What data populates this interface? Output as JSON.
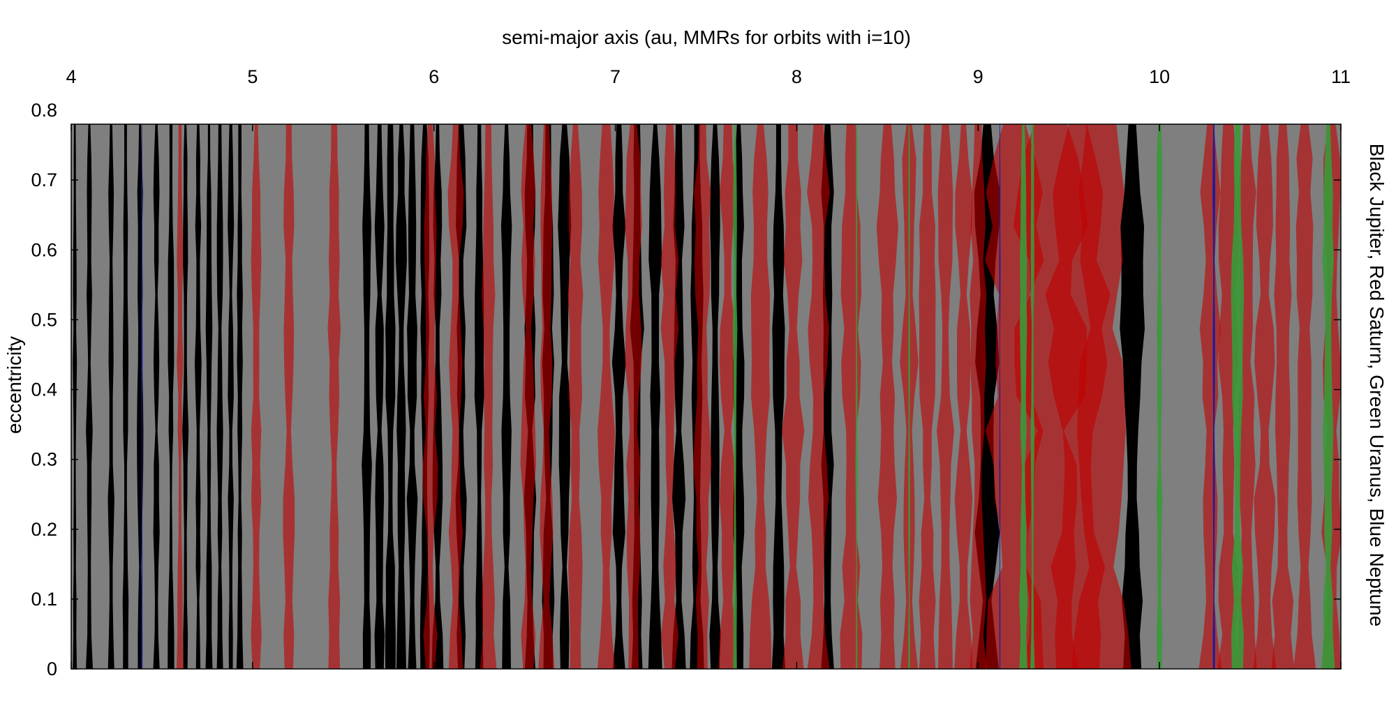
{
  "chart_data": {
    "type": "area",
    "title": "semi-major axis (au, MMRs for orbits with i=10)",
    "xlabel": "",
    "ylabel": "eccentricity",
    "side_label": "Black Jupiter, Red Saturn, Green Uranus, Blue Neptune",
    "xlim": [
      4,
      11
    ],
    "ylim": [
      0,
      0.8
    ],
    "plot_top_value": 0.78,
    "x_axis_position": "top",
    "grid": false,
    "x_ticks": [
      4,
      5,
      6,
      7,
      8,
      9,
      10,
      11
    ],
    "x_tick_labels": [
      "4",
      "5",
      "6",
      "7",
      "8",
      "9",
      "10",
      "11"
    ],
    "y_ticks": [
      0,
      0.1,
      0.2,
      0.3,
      0.4,
      0.5,
      0.6,
      0.7,
      0.8
    ],
    "y_tick_labels": [
      "0",
      "0.1",
      "0.2",
      "0.3",
      "0.4",
      "0.5",
      "0.6",
      "0.7",
      "0.8"
    ],
    "series": [
      {
        "name": "Jupiter",
        "color": "#000000",
        "opacity": 1.0,
        "resonance_centers": [
          4.02,
          4.1,
          4.22,
          4.3,
          4.38,
          4.47,
          4.55,
          4.63,
          4.7,
          4.76,
          4.82,
          4.88,
          4.93,
          5.63,
          5.7,
          5.76,
          5.82,
          5.88,
          5.95,
          6.02,
          6.15,
          6.25,
          6.4,
          6.53,
          6.63,
          6.72,
          7.02,
          7.12,
          7.22,
          7.35,
          7.45,
          7.55,
          7.68,
          7.9,
          8.17,
          9.05,
          9.85
        ],
        "resonance_widths": [
          0.02,
          0.03,
          0.03,
          0.03,
          0.03,
          0.03,
          0.03,
          0.03,
          0.03,
          0.03,
          0.03,
          0.03,
          0.03,
          0.05,
          0.05,
          0.05,
          0.05,
          0.05,
          0.05,
          0.05,
          0.05,
          0.05,
          0.05,
          0.06,
          0.06,
          0.06,
          0.06,
          0.06,
          0.06,
          0.06,
          0.06,
          0.06,
          0.06,
          0.06,
          0.06,
          0.12,
          0.12
        ]
      },
      {
        "name": "Saturn",
        "color": "#c00000",
        "opacity": 0.6,
        "resonance_centers": [
          4.6,
          5.02,
          5.2,
          5.45,
          5.98,
          6.12,
          6.3,
          6.52,
          6.62,
          6.78,
          6.95,
          7.1,
          7.3,
          7.48,
          7.62,
          7.8,
          7.98,
          8.12,
          8.3,
          8.5,
          8.62,
          8.72,
          8.82,
          8.92,
          9.0,
          9.2,
          9.4,
          9.55,
          9.68,
          10.28,
          10.38,
          10.48,
          10.58,
          10.68,
          10.8,
          10.95
        ],
        "resonance_widths": [
          0.03,
          0.05,
          0.06,
          0.06,
          0.07,
          0.07,
          0.07,
          0.07,
          0.07,
          0.08,
          0.08,
          0.08,
          0.08,
          0.08,
          0.08,
          0.1,
          0.1,
          0.1,
          0.1,
          0.1,
          0.08,
          0.08,
          0.08,
          0.08,
          0.08,
          0.3,
          0.35,
          0.3,
          0.3,
          0.1,
          0.1,
          0.1,
          0.1,
          0.1,
          0.1,
          0.1
        ]
      },
      {
        "name": "Uranus",
        "color": "#3a9a3a",
        "opacity": 0.9,
        "resonance_centers": [
          7.66,
          8.33,
          8.62,
          9.25,
          9.3,
          10.0,
          10.43,
          10.93
        ],
        "resonance_widths": [
          0.02,
          0.01,
          0.01,
          0.04,
          0.02,
          0.03,
          0.06,
          0.06
        ]
      },
      {
        "name": "Neptune",
        "color": "#1c1c9c",
        "opacity": 1.0,
        "resonance_centers": [
          4.39,
          9.12,
          10.3
        ],
        "resonance_widths": [
          0.006,
          0.006,
          0.012
        ]
      }
    ],
    "background_fill_color": "#7f7f7f"
  }
}
